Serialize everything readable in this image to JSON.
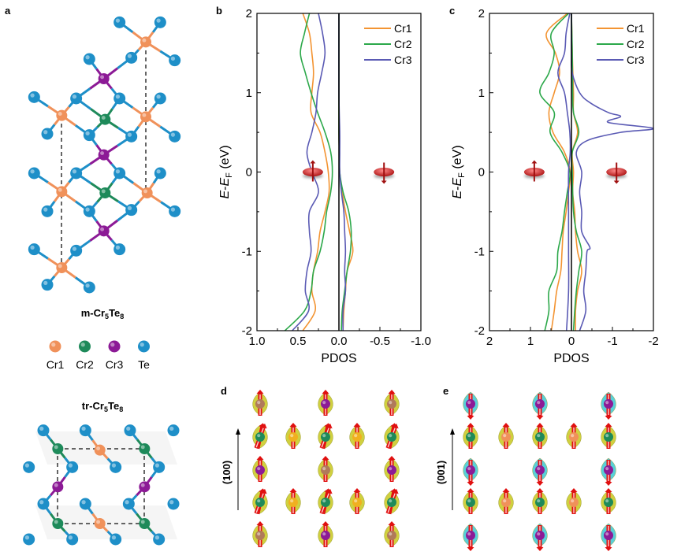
{
  "panel_labels": {
    "a": "a",
    "b": "b",
    "c": "c",
    "d": "d",
    "e": "e"
  },
  "structures": {
    "m_title": {
      "prefix": "m-Cr",
      "sub1": "5",
      "mid": "Te",
      "sub2": "8"
    },
    "tr_title": {
      "prefix": "tr-Cr",
      "sub1": "5",
      "mid": "Te",
      "sub2": "8"
    },
    "legend": [
      {
        "label": "Cr1",
        "color": "#f0915a"
      },
      {
        "label": "Cr2",
        "color": "#1e8a5a"
      },
      {
        "label": "Cr3",
        "color": "#8c1a96"
      },
      {
        "label": "Te",
        "color": "#1e8fc8"
      }
    ]
  },
  "spin_maps": {
    "d_axis_label": "(100)",
    "e_axis_label": "(001)",
    "cloud_colors": {
      "up": "#c8c81e",
      "down": "#3cc8d2"
    },
    "arrow_color": "#e01010"
  },
  "chart_data": [
    {
      "type": "line",
      "panel": "b",
      "xlabel": "PDOS",
      "ylabel": {
        "main": "E",
        "dash": "-",
        "e": "E",
        "sub": "F",
        "unit": " (eV)"
      },
      "xlim": [
        1.0,
        -1.0
      ],
      "ylim": [
        -2,
        2
      ],
      "xticks": [
        "1.0",
        "0.5",
        "0.0",
        "-0.5",
        "-1.0"
      ],
      "xtick_values": [
        1,
        0.5,
        0,
        -0.5,
        -1
      ],
      "yticks": [
        "2",
        "1",
        "0",
        "-1",
        "-2"
      ],
      "ytick_values": [
        2,
        1,
        0,
        -1,
        -2
      ],
      "legend_placement": "top-right",
      "grid": false,
      "series": [
        {
          "name": "Cr1",
          "color": "#f39432",
          "up": [
            [
              0.44,
              2
            ],
            [
              0.36,
              1.75
            ],
            [
              0.33,
              1.5
            ],
            [
              0.31,
              1.25
            ],
            [
              0.33,
              1
            ],
            [
              0.34,
              0.75
            ],
            [
              0.23,
              0.5
            ],
            [
              0.17,
              0.25
            ],
            [
              0.13,
              0
            ],
            [
              0.12,
              -0.25
            ],
            [
              0.17,
              -0.5
            ],
            [
              0.23,
              -0.75
            ],
            [
              0.26,
              -1
            ],
            [
              0.31,
              -1.25
            ],
            [
              0.33,
              -1.5
            ],
            [
              0.29,
              -1.75
            ],
            [
              0.44,
              -2
            ]
          ],
          "down": [
            [
              0,
              2
            ],
            [
              0,
              1
            ],
            [
              0,
              0.5
            ],
            [
              -0.005,
              0.25
            ],
            [
              -0.01,
              0
            ],
            [
              -0.04,
              -0.25
            ],
            [
              -0.08,
              -0.5
            ],
            [
              -0.13,
              -0.75
            ],
            [
              -0.17,
              -1
            ],
            [
              -0.1,
              -1.25
            ],
            [
              -0.08,
              -1.5
            ],
            [
              -0.06,
              -1.75
            ],
            [
              -0.05,
              -2
            ]
          ]
        },
        {
          "name": "Cr2",
          "color": "#2ca84a",
          "up": [
            [
              0.36,
              2
            ],
            [
              0.42,
              1.75
            ],
            [
              0.47,
              1.5
            ],
            [
              0.41,
              1.25
            ],
            [
              0.34,
              1
            ],
            [
              0.26,
              0.75
            ],
            [
              0.17,
              0.5
            ],
            [
              0.1,
              0.25
            ],
            [
              0.08,
              0
            ],
            [
              0.1,
              -0.25
            ],
            [
              0.15,
              -0.5
            ],
            [
              0.18,
              -0.75
            ],
            [
              0.23,
              -1
            ],
            [
              0.31,
              -1.25
            ],
            [
              0.34,
              -1.5
            ],
            [
              0.42,
              -1.75
            ],
            [
              0.66,
              -2
            ]
          ],
          "down": [
            [
              0,
              2
            ],
            [
              0,
              1
            ],
            [
              0,
              0.5
            ],
            [
              -0.005,
              0.25
            ],
            [
              -0.01,
              0
            ],
            [
              -0.05,
              -0.25
            ],
            [
              -0.12,
              -0.5
            ],
            [
              -0.15,
              -0.75
            ],
            [
              -0.14,
              -1
            ],
            [
              -0.1,
              -1.25
            ],
            [
              -0.07,
              -1.5
            ],
            [
              -0.04,
              -1.75
            ],
            [
              -0.03,
              -2
            ]
          ]
        },
        {
          "name": "Cr3",
          "color": "#5a5ab4",
          "up": [
            [
              0.25,
              2
            ],
            [
              0.2,
              1.75
            ],
            [
              0.17,
              1.5
            ],
            [
              0.21,
              1.25
            ],
            [
              0.26,
              1
            ],
            [
              0.28,
              0.75
            ],
            [
              0.33,
              0.5
            ],
            [
              0.39,
              0.25
            ],
            [
              0.33,
              0
            ],
            [
              0.25,
              -0.25
            ],
            [
              0.36,
              -0.5
            ],
            [
              0.36,
              -0.75
            ],
            [
              0.34,
              -1
            ],
            [
              0.39,
              -1.25
            ],
            [
              0.41,
              -1.5
            ],
            [
              0.37,
              -1.75
            ],
            [
              0.57,
              -2
            ]
          ],
          "down": [
            [
              0,
              2
            ],
            [
              0,
              1
            ],
            [
              -0.01,
              0.5
            ],
            [
              -0.01,
              0.25
            ],
            [
              -0.01,
              0
            ],
            [
              -0.03,
              -0.25
            ],
            [
              -0.06,
              -0.5
            ],
            [
              -0.07,
              -0.75
            ],
            [
              -0.08,
              -1
            ],
            [
              -0.07,
              -1.25
            ],
            [
              -0.08,
              -1.5
            ],
            [
              -0.05,
              -1.75
            ],
            [
              -0.05,
              -2
            ]
          ]
        }
      ]
    },
    {
      "type": "line",
      "panel": "c",
      "xlabel": "PDOS",
      "ylabel": {
        "main": "E",
        "dash": "-",
        "e": "E",
        "sub": "F",
        "unit": " (eV)"
      },
      "xlim": [
        2,
        -2
      ],
      "ylim": [
        -2,
        2
      ],
      "xticks": [
        "2",
        "1",
        "0",
        "-1",
        "-2"
      ],
      "xtick_values": [
        2,
        1,
        0,
        -1,
        -2
      ],
      "yticks": [
        "2",
        "1",
        "0",
        "-1",
        "-2"
      ],
      "ytick_values": [
        2,
        1,
        0,
        -1,
        -2
      ],
      "legend_placement": "top-right",
      "grid": false,
      "series": [
        {
          "name": "Cr1",
          "color": "#f39432",
          "up": [
            [
              0.1,
              2
            ],
            [
              0.61,
              1.75
            ],
            [
              0.39,
              1.5
            ],
            [
              0.29,
              1.25
            ],
            [
              0.42,
              1
            ],
            [
              0.55,
              0.75
            ],
            [
              0.45,
              0.5
            ],
            [
              0.17,
              0.25
            ],
            [
              0.03,
              0
            ],
            [
              0.07,
              -0.25
            ],
            [
              0.13,
              -0.5
            ],
            [
              0.2,
              -0.75
            ],
            [
              0.23,
              -1
            ],
            [
              0.26,
              -1.25
            ],
            [
              0.36,
              -1.5
            ],
            [
              0.42,
              -1.75
            ],
            [
              0.49,
              -2
            ]
          ],
          "down": [
            [
              0,
              2
            ],
            [
              -0.02,
              1.5
            ],
            [
              -0.05,
              1
            ],
            [
              -0.05,
              0.75
            ],
            [
              -0.15,
              0.5
            ],
            [
              -0.02,
              0.25
            ],
            [
              -0.05,
              0
            ],
            [
              -0.03,
              -0.25
            ],
            [
              -0.08,
              -0.5
            ],
            [
              -0.1,
              -0.75
            ],
            [
              -0.15,
              -1
            ],
            [
              -0.25,
              -1.25
            ],
            [
              -0.15,
              -1.5
            ],
            [
              -0.1,
              -1.75
            ],
            [
              -0.1,
              -2
            ]
          ]
        },
        {
          "name": "Cr2",
          "color": "#2ca84a",
          "up": [
            [
              0.07,
              2
            ],
            [
              0.49,
              1.75
            ],
            [
              0.42,
              1.5
            ],
            [
              0.55,
              1.25
            ],
            [
              0.77,
              1
            ],
            [
              0.42,
              0.75
            ],
            [
              0.52,
              0.5
            ],
            [
              0.23,
              0.25
            ],
            [
              0.04,
              0
            ],
            [
              0.1,
              -0.25
            ],
            [
              0.17,
              -0.5
            ],
            [
              0.23,
              -0.75
            ],
            [
              0.33,
              -1
            ],
            [
              0.36,
              -1.25
            ],
            [
              0.55,
              -1.5
            ],
            [
              0.55,
              -1.75
            ],
            [
              0.65,
              -2
            ]
          ],
          "down": [
            [
              0,
              2
            ],
            [
              -0.02,
              1.5
            ],
            [
              -0.03,
              1
            ],
            [
              -0.05,
              0.75
            ],
            [
              -0.18,
              0.5
            ],
            [
              -0.02,
              0.25
            ],
            [
              -0.02,
              0
            ],
            [
              -0.03,
              -0.25
            ],
            [
              -0.05,
              -0.5
            ],
            [
              -0.12,
              -0.75
            ],
            [
              -0.25,
              -1
            ],
            [
              -0.18,
              -1.25
            ],
            [
              -0.12,
              -1.5
            ],
            [
              -0.08,
              -1.75
            ],
            [
              -0.05,
              -2
            ]
          ]
        },
        {
          "name": "Cr3",
          "color": "#5a5ab4",
          "up": [
            [
              0.04,
              2
            ],
            [
              0.13,
              1.75
            ],
            [
              0.17,
              1.5
            ],
            [
              0.33,
              1.25
            ],
            [
              0.17,
              1
            ],
            [
              0.1,
              0.75
            ],
            [
              0.04,
              0.5
            ],
            [
              0.03,
              0.25
            ],
            [
              0.07,
              0
            ],
            [
              0.07,
              -0.5
            ],
            [
              0.07,
              -1
            ],
            [
              0.07,
              -1.5
            ],
            [
              0.12,
              -2
            ]
          ],
          "down": [
            [
              0,
              2
            ],
            [
              0,
              1.5
            ],
            [
              -0.02,
              1.25
            ],
            [
              -0.2,
              1
            ],
            [
              -0.45,
              0.875
            ],
            [
              -0.9,
              0.75
            ],
            [
              -1.2,
              0.7
            ],
            [
              -0.9,
              0.625
            ],
            [
              -2.0,
              0.55
            ],
            [
              -1.2,
              0.5
            ],
            [
              -0.4,
              0.4
            ],
            [
              -0.12,
              0.25
            ],
            [
              -0.25,
              0
            ],
            [
              -0.2,
              -0.25
            ],
            [
              -0.25,
              -0.5
            ],
            [
              -0.25,
              -0.75
            ],
            [
              -0.45,
              -0.95
            ],
            [
              -0.38,
              -1
            ],
            [
              -0.35,
              -1.25
            ],
            [
              -0.3,
              -1.5
            ],
            [
              -0.35,
              -1.75
            ],
            [
              -0.2,
              -2
            ]
          ]
        }
      ]
    }
  ]
}
